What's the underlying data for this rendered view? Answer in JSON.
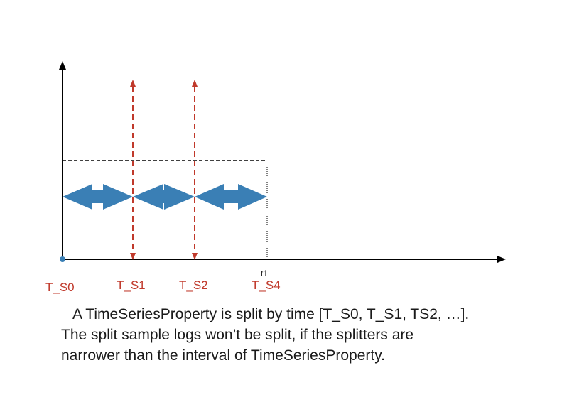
{
  "labels": {
    "ts0": "T_S0",
    "ts1": "T_S1",
    "ts2": "T_S2",
    "ts4": "T_S4",
    "t1": "t1"
  },
  "caption": {
    "line1": "A TimeSeriesProperty is split by time [T_S0, T_S1, TS2, …].",
    "line2": "The split sample logs won’t be split, if the splitters are",
    "line3": "narrower than the interval of TimeSeriesProperty."
  },
  "colors": {
    "axis": "#000000",
    "splitter": "#c0392b",
    "arrow_fill": "#3a7fb5",
    "origin_dot": "#3a7fb5"
  }
}
